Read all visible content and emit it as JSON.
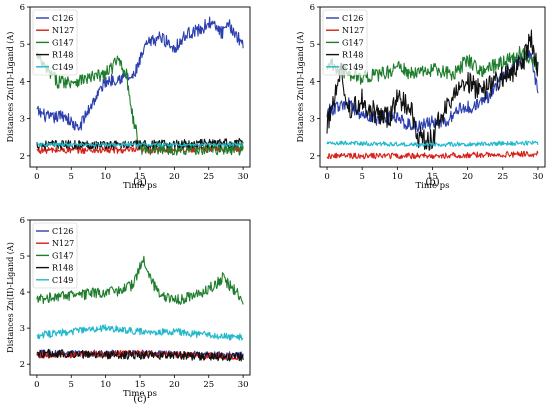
{
  "colors": {
    "C126": "#2b3fae",
    "N127": "#d62018",
    "G147": "#1e7d2c",
    "R148": "#111111",
    "C149": "#22b8cc"
  },
  "chart_data": [
    {
      "type": "line",
      "panel_label": "(a)",
      "xlabel": "Time ps",
      "ylabel": "Distances Zn(II)-Ligand (A)",
      "xlim": [
        -1,
        31
      ],
      "ylim": [
        1.7,
        6
      ],
      "xticks": [
        "0",
        "5",
        "10",
        "15",
        "20",
        "25",
        "30"
      ],
      "yticks": [
        "2",
        "3",
        "4",
        "5",
        "6"
      ],
      "legend_position": "top-left",
      "series": [
        {
          "name": "C126",
          "color": "#2b3fae",
          "noise": 0.17,
          "points": [
            [
              0,
              3.2
            ],
            [
              2,
              3.0
            ],
            [
              4,
              3.1
            ],
            [
              6,
              2.7
            ],
            [
              8,
              3.4
            ],
            [
              10,
              4.0
            ],
            [
              12,
              4.1
            ],
            [
              14,
              4.1
            ],
            [
              16,
              5.0
            ],
            [
              18,
              5.2
            ],
            [
              20,
              4.9
            ],
            [
              22,
              5.3
            ],
            [
              24,
              5.4
            ],
            [
              25,
              5.6
            ],
            [
              27,
              5.3
            ],
            [
              28,
              5.5
            ],
            [
              30,
              5.0
            ]
          ]
        },
        {
          "name": "N127",
          "color": "#d62018",
          "noise": 0.09,
          "points": [
            [
              0,
              2.15
            ],
            [
              15,
              2.15
            ],
            [
              30,
              2.2
            ]
          ]
        },
        {
          "name": "G147",
          "color": "#1e7d2c",
          "noise": 0.18,
          "points": [
            [
              0,
              4.7
            ],
            [
              1,
              4.4
            ],
            [
              2,
              4.2
            ],
            [
              3,
              4.0
            ],
            [
              5,
              4.0
            ],
            [
              8,
              4.1
            ],
            [
              10,
              4.2
            ],
            [
              12,
              4.6
            ],
            [
              13,
              4.2
            ],
            [
              14,
              3.0
            ],
            [
              15,
              2.2
            ],
            [
              30,
              2.2
            ]
          ]
        },
        {
          "name": "R148",
          "color": "#111111",
          "noise": 0.12,
          "points": [
            [
              0,
              2.3
            ],
            [
              15,
              2.3
            ],
            [
              30,
              2.35
            ]
          ]
        },
        {
          "name": "C149",
          "color": "#22b8cc",
          "noise": 0.05,
          "points": [
            [
              0,
              2.3
            ],
            [
              15,
              2.3
            ],
            [
              30,
              2.3
            ]
          ]
        }
      ]
    },
    {
      "type": "line",
      "panel_label": "(b)",
      "xlabel": "Time ps",
      "ylabel": "Distances Zn(II)-Ligand (A)",
      "xlim": [
        -1,
        31
      ],
      "ylim": [
        1.7,
        6
      ],
      "xticks": [
        "0",
        "5",
        "10",
        "15",
        "20",
        "25",
        "30"
      ],
      "yticks": [
        "2",
        "3",
        "4",
        "5",
        "6"
      ],
      "legend_position": "top-left",
      "series": [
        {
          "name": "C126",
          "color": "#2b3fae",
          "noise": 0.18,
          "points": [
            [
              0,
              3.2
            ],
            [
              3,
              3.4
            ],
            [
              5,
              3.1
            ],
            [
              7,
              3.0
            ],
            [
              9,
              3.1
            ],
            [
              11,
              2.9
            ],
            [
              13,
              2.8
            ],
            [
              15,
              2.9
            ],
            [
              17,
              2.9
            ],
            [
              19,
              3.3
            ],
            [
              21,
              3.3
            ],
            [
              23,
              3.6
            ],
            [
              25,
              4.2
            ],
            [
              27,
              4.5
            ],
            [
              29,
              4.7
            ],
            [
              30,
              3.7
            ]
          ]
        },
        {
          "name": "N127",
          "color": "#d62018",
          "noise": 0.08,
          "points": [
            [
              0,
              2.0
            ],
            [
              15,
              2.0
            ],
            [
              30,
              2.05
            ]
          ]
        },
        {
          "name": "G147",
          "color": "#1e7d2c",
          "noise": 0.2,
          "points": [
            [
              0,
              4.5
            ],
            [
              2,
              4.3
            ],
            [
              5,
              4.1
            ],
            [
              8,
              4.2
            ],
            [
              10,
              4.4
            ],
            [
              12,
              4.2
            ],
            [
              15,
              4.3
            ],
            [
              18,
              4.2
            ],
            [
              20,
              4.6
            ],
            [
              22,
              4.3
            ],
            [
              25,
              4.5
            ],
            [
              28,
              4.8
            ],
            [
              30,
              4.4
            ]
          ]
        },
        {
          "name": "R148",
          "color": "#111111",
          "noise": 0.3,
          "points": [
            [
              0,
              2.8
            ],
            [
              2,
              4.3
            ],
            [
              3,
              3.2
            ],
            [
              5,
              3.5
            ],
            [
              7,
              3.1
            ],
            [
              9,
              3.0
            ],
            [
              10,
              3.6
            ],
            [
              12,
              3.2
            ],
            [
              13,
              2.5
            ],
            [
              15,
              2.4
            ],
            [
              16,
              3.0
            ],
            [
              18,
              3.6
            ],
            [
              20,
              4.0
            ],
            [
              22,
              3.7
            ],
            [
              24,
              4.0
            ],
            [
              26,
              4.2
            ],
            [
              28,
              4.6
            ],
            [
              29,
              5.2
            ],
            [
              30,
              4.3
            ]
          ]
        },
        {
          "name": "C149",
          "color": "#22b8cc",
          "noise": 0.06,
          "points": [
            [
              0,
              2.35
            ],
            [
              15,
              2.3
            ],
            [
              30,
              2.35
            ]
          ]
        }
      ]
    },
    {
      "type": "line",
      "panel_label": "(c)",
      "xlabel": "Time ps",
      "ylabel": "Distances Zn(II)-Ligand (A)",
      "xlim": [
        -1,
        31
      ],
      "ylim": [
        1.7,
        6
      ],
      "xticks": [
        "0",
        "5",
        "10",
        "15",
        "20",
        "25",
        "30"
      ],
      "yticks": [
        "2",
        "3",
        "4",
        "5",
        "6"
      ],
      "legend_position": "top-left",
      "series": [
        {
          "name": "C126",
          "color": "#2b3fae",
          "noise": 0.09,
          "points": [
            [
              0,
              2.3
            ],
            [
              15,
              2.3
            ],
            [
              30,
              2.25
            ]
          ]
        },
        {
          "name": "N127",
          "color": "#d62018",
          "noise": 0.09,
          "points": [
            [
              0,
              2.25
            ],
            [
              15,
              2.3
            ],
            [
              30,
              2.2
            ]
          ]
        },
        {
          "name": "G147",
          "color": "#1e7d2c",
          "noise": 0.15,
          "points": [
            [
              0,
              3.8
            ],
            [
              3,
              3.9
            ],
            [
              6,
              3.9
            ],
            [
              9,
              4.0
            ],
            [
              12,
              4.0
            ],
            [
              14,
              4.2
            ],
            [
              15,
              4.7
            ],
            [
              15.5,
              5.0
            ],
            [
              16,
              4.6
            ],
            [
              17,
              4.2
            ],
            [
              18,
              3.9
            ],
            [
              21,
              3.8
            ],
            [
              24,
              4.0
            ],
            [
              26,
              4.2
            ],
            [
              27,
              4.4
            ],
            [
              29,
              4.0
            ],
            [
              30,
              3.8
            ]
          ]
        },
        {
          "name": "R148",
          "color": "#111111",
          "noise": 0.12,
          "points": [
            [
              0,
              2.3
            ],
            [
              15,
              2.25
            ],
            [
              30,
              2.2
            ]
          ]
        },
        {
          "name": "C149",
          "color": "#22b8cc",
          "noise": 0.1,
          "points": [
            [
              0,
              2.8
            ],
            [
              5,
              2.9
            ],
            [
              10,
              3.0
            ],
            [
              15,
              2.9
            ],
            [
              20,
              2.9
            ],
            [
              25,
              2.8
            ],
            [
              30,
              2.75
            ]
          ]
        }
      ]
    }
  ]
}
